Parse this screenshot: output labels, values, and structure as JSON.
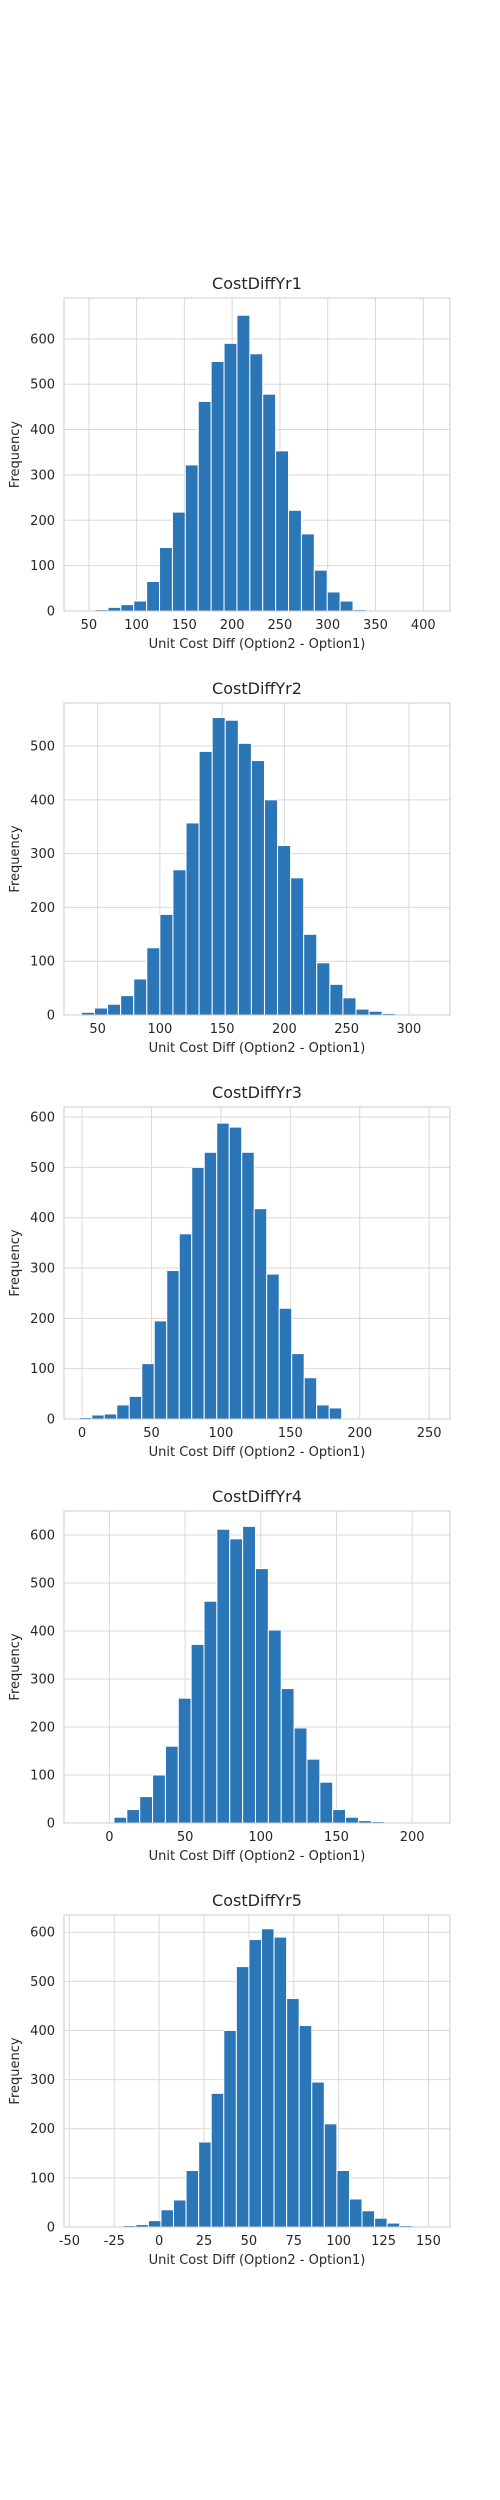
{
  "colors": {
    "bar": "#2a76b7",
    "grid": "#d9d9d9",
    "frame": "#cccccc",
    "text": "#262626"
  },
  "chart_data": [
    {
      "type": "bar",
      "title": "CostDiffYr1",
      "xlabel": "Unit Cost Diff (Option2 - Option1)",
      "ylabel": "Frequency",
      "grid": true,
      "xlim": [
        24,
        428
      ],
      "ylim": [
        0,
        690
      ],
      "xticks": [
        50,
        100,
        150,
        200,
        250,
        300,
        350,
        400
      ],
      "yticks": [
        0,
        100,
        200,
        300,
        400,
        500,
        600
      ],
      "bin_edges": [
        43,
        56.5,
        70,
        83.5,
        97,
        110.5,
        124,
        137.5,
        151,
        164.5,
        178,
        191.5,
        205,
        218.5,
        232,
        245.5,
        259,
        272.5,
        286,
        299.5,
        313,
        326.5,
        340,
        353.5,
        367,
        380.5,
        394,
        407.5,
        421
      ],
      "values": [
        1,
        3,
        8,
        14,
        22,
        65,
        140,
        218,
        322,
        462,
        550,
        590,
        652,
        567,
        478,
        353,
        222,
        170,
        90,
        42,
        22,
        3,
        1,
        0,
        0,
        0,
        0,
        1
      ]
    },
    {
      "type": "bar",
      "title": "CostDiffYr2",
      "xlabel": "Unit Cost Diff (Option2 - Option1)",
      "ylabel": "Frequency",
      "grid": true,
      "xlim": [
        23,
        333
      ],
      "ylim": [
        0,
        580
      ],
      "xticks": [
        50,
        100,
        150,
        200,
        250,
        300
      ],
      "yticks": [
        0,
        100,
        200,
        300,
        400,
        500
      ],
      "bin_edges": [
        37,
        47.5,
        58,
        68.5,
        79,
        89.5,
        100,
        110.5,
        121,
        131.5,
        142,
        152.5,
        163,
        173.5,
        184,
        194.5,
        205,
        215.5,
        226,
        236.5,
        247,
        257.5,
        268,
        278.5,
        289,
        299.5,
        310,
        320.5
      ],
      "values": [
        5,
        13,
        20,
        36,
        67,
        125,
        187,
        270,
        357,
        490,
        553,
        548,
        505,
        473,
        400,
        315,
        255,
        150,
        97,
        57,
        32,
        11,
        7,
        3,
        1,
        1,
        1
      ]
    },
    {
      "type": "bar",
      "title": "CostDiffYr3",
      "xlabel": "Unit Cost Diff (Option2 - Option1)",
      "ylabel": "Frequency",
      "grid": true,
      "xlim": [
        -13,
        265
      ],
      "ylim": [
        0,
        620
      ],
      "xticks": [
        0,
        50,
        100,
        150,
        200,
        250
      ],
      "yticks": [
        0,
        100,
        200,
        300,
        400,
        500,
        600
      ],
      "bin_edges": [
        -2,
        7,
        16,
        25,
        34,
        43,
        52,
        61,
        70,
        79,
        88,
        97,
        106,
        115,
        124,
        133,
        142,
        151,
        160,
        169,
        178,
        187,
        196,
        205,
        214,
        223,
        232,
        241,
        250
      ],
      "values": [
        3,
        8,
        10,
        28,
        45,
        110,
        195,
        295,
        368,
        500,
        530,
        588,
        580,
        530,
        418,
        288,
        220,
        130,
        82,
        28,
        22,
        2,
        1,
        1,
        1,
        1,
        1,
        1
      ]
    },
    {
      "type": "bar",
      "title": "CostDiffYr4",
      "xlabel": "Unit Cost Diff (Option2 - Option1)",
      "ylabel": "Frequency",
      "grid": true,
      "xlim": [
        -30,
        225
      ],
      "ylim": [
        0,
        650
      ],
      "xticks": [
        0,
        50,
        100,
        150,
        200
      ],
      "yticks": [
        0,
        100,
        200,
        300,
        400,
        500,
        600
      ],
      "bin_edges": [
        3,
        11.5,
        20,
        28.5,
        37,
        45.5,
        54,
        62.5,
        71,
        79.5,
        88,
        96.5,
        105,
        113.5,
        122,
        130.5,
        139,
        147.5,
        156,
        164.5,
        173,
        181.5,
        190,
        198.5,
        207
      ],
      "values": [
        12,
        28,
        55,
        100,
        160,
        260,
        372,
        462,
        612,
        592,
        618,
        530,
        402,
        280,
        198,
        133,
        85,
        28,
        12,
        5,
        3,
        1,
        1,
        1
      ]
    },
    {
      "type": "bar",
      "title": "CostDiffYr5",
      "xlabel": "Unit Cost Diff (Option2 - Option1)",
      "ylabel": "Frequency",
      "grid": true,
      "xlim": [
        -53,
        162
      ],
      "ylim": [
        0,
        635
      ],
      "xticks": [
        -50,
        -25,
        0,
        25,
        50,
        75,
        100,
        125,
        150
      ],
      "yticks": [
        0,
        100,
        200,
        300,
        400,
        500,
        600
      ],
      "bin_edges": [
        -27,
        -20,
        -13,
        -6,
        1,
        8,
        15,
        22,
        29,
        36,
        43,
        50,
        57,
        64,
        71,
        78,
        85,
        92,
        99,
        106,
        113,
        120,
        127,
        134,
        141,
        148
      ],
      "values": [
        1,
        3,
        5,
        13,
        35,
        55,
        115,
        173,
        272,
        400,
        530,
        585,
        607,
        590,
        465,
        410,
        295,
        210,
        115,
        57,
        33,
        18,
        8,
        3,
        1
      ]
    }
  ]
}
